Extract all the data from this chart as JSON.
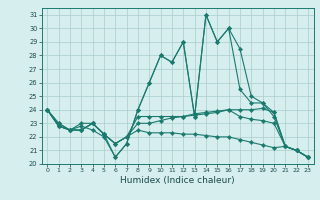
{
  "title": "",
  "xlabel": "Humidex (Indice chaleur)",
  "ylabel": "",
  "xlim": [
    -0.5,
    23.5
  ],
  "ylim": [
    20,
    31.5
  ],
  "yticks": [
    20,
    21,
    22,
    23,
    24,
    25,
    26,
    27,
    28,
    29,
    30,
    31
  ],
  "xticks": [
    0,
    1,
    2,
    3,
    4,
    5,
    6,
    7,
    8,
    9,
    10,
    11,
    12,
    13,
    14,
    15,
    16,
    17,
    18,
    19,
    20,
    21,
    22,
    23
  ],
  "bg_color": "#d6eeee",
  "grid_color": "#aacccc",
  "line_color": "#1a7a6e",
  "lines": [
    [
      24.0,
      23.0,
      22.5,
      22.8,
      22.5,
      22.0,
      20.5,
      21.5,
      24.0,
      26.0,
      28.0,
      27.5,
      29.0,
      23.5,
      31.0,
      29.0,
      30.0,
      28.5,
      25.0,
      24.5,
      23.5,
      21.3,
      21.0,
      20.5
    ],
    [
      24.0,
      23.0,
      22.5,
      23.0,
      23.0,
      22.2,
      20.5,
      21.5,
      24.0,
      26.0,
      28.0,
      27.5,
      29.0,
      23.5,
      31.0,
      29.0,
      30.0,
      25.5,
      24.5,
      24.5,
      23.8,
      21.3,
      21.0,
      20.5
    ],
    [
      24.0,
      22.8,
      22.5,
      22.5,
      23.0,
      22.2,
      21.5,
      22.0,
      23.5,
      23.5,
      23.5,
      23.5,
      23.5,
      23.7,
      23.8,
      23.9,
      24.0,
      24.0,
      24.0,
      24.1,
      23.8,
      21.3,
      21.0,
      20.5
    ],
    [
      24.0,
      22.8,
      22.5,
      22.5,
      23.0,
      22.2,
      21.5,
      22.0,
      23.0,
      23.0,
      23.2,
      23.4,
      23.5,
      23.6,
      23.7,
      23.8,
      24.0,
      23.5,
      23.3,
      23.2,
      23.0,
      21.3,
      21.0,
      20.5
    ],
    [
      24.0,
      22.8,
      22.5,
      22.5,
      23.0,
      22.2,
      21.5,
      22.0,
      22.5,
      22.3,
      22.3,
      22.3,
      22.2,
      22.2,
      22.1,
      22.0,
      22.0,
      21.8,
      21.6,
      21.4,
      21.2,
      21.3,
      21.0,
      20.5
    ]
  ]
}
